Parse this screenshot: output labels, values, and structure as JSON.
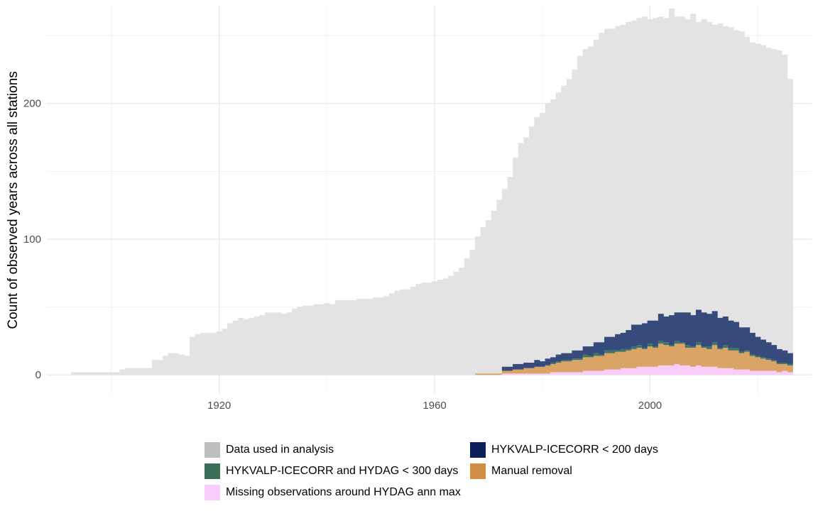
{
  "chart_data": {
    "type": "bar",
    "stacked": true,
    "title": "",
    "xlabel": "",
    "ylabel": "Count of observed years across all stations",
    "xlim": [
      1888,
      2030
    ],
    "ylim": [
      -14,
      272
    ],
    "x_ticks": [
      1920,
      1960,
      2000
    ],
    "y_ticks": [
      0,
      100,
      200
    ],
    "x_tick_labels": [
      "1920",
      "1960",
      "2000"
    ],
    "y_tick_labels": [
      "0",
      "100",
      "200"
    ],
    "grid": true,
    "legend_position": "bottom",
    "years_start": 1893,
    "years_end": 2023,
    "series": [
      {
        "name": "Data used in analysis",
        "color": "#e3e3e3",
        "legend_color": "#bebebe",
        "values": [
          2,
          2,
          2,
          2,
          2,
          2,
          2,
          2,
          2,
          4,
          5,
          5,
          5,
          5,
          5,
          11,
          11,
          14,
          16,
          16,
          15,
          14,
          28,
          30,
          31,
          31,
          31,
          32,
          34,
          38,
          40,
          42,
          41,
          42,
          43,
          44,
          46,
          46,
          46,
          45,
          46,
          49,
          50,
          51,
          51,
          52,
          52,
          53,
          52,
          55,
          55,
          55,
          55,
          56,
          56,
          56,
          57,
          57,
          58,
          60,
          62,
          63,
          63,
          65,
          67,
          68,
          68,
          69,
          70,
          71,
          73,
          76,
          79,
          86,
          92,
          102,
          109,
          114,
          121,
          129,
          137,
          146,
          160,
          171,
          175,
          183,
          190,
          193,
          200,
          203,
          208,
          213,
          218,
          225,
          235,
          240,
          242,
          247,
          252,
          255,
          255,
          257,
          258,
          260,
          261,
          263,
          264,
          262,
          263,
          264,
          263,
          270,
          264,
          264,
          262,
          266,
          260,
          262,
          260,
          258,
          259,
          257,
          256,
          254,
          253,
          249,
          245,
          244,
          243,
          241,
          240,
          239,
          236,
          218
        ]
      },
      {
        "name": "Missing observations around HYDAG ann max",
        "color": "#f9ccf9",
        "legend_color": "#f9ccf9",
        "values": [
          0,
          0,
          0,
          0,
          0,
          0,
          0,
          0,
          0,
          0,
          0,
          0,
          0,
          0,
          0,
          0,
          0,
          0,
          0,
          0,
          0,
          0,
          0,
          0,
          0,
          0,
          0,
          0,
          0,
          0,
          0,
          0,
          0,
          0,
          0,
          0,
          0,
          0,
          0,
          0,
          0,
          0,
          0,
          0,
          0,
          0,
          0,
          0,
          0,
          0,
          0,
          0,
          0,
          0,
          0,
          0,
          0,
          0,
          0,
          0,
          0,
          0,
          0,
          0,
          0,
          0,
          0,
          0,
          0,
          0,
          0,
          0,
          0,
          0,
          0,
          0,
          0,
          0,
          0,
          0,
          1,
          1,
          1,
          1,
          1,
          1,
          1,
          1,
          1,
          2,
          2,
          2,
          2,
          2,
          2,
          3,
          3,
          3,
          3,
          4,
          4,
          4,
          5,
          5,
          5,
          6,
          6,
          6,
          6,
          7,
          7,
          7,
          8,
          7,
          7,
          6,
          7,
          6,
          6,
          6,
          5,
          5,
          5,
          4,
          4,
          4,
          3,
          3,
          3,
          3,
          3,
          2,
          3,
          2,
          3,
          2,
          2,
          3,
          2
        ]
      },
      {
        "name": "Manual removal",
        "color": "#d9a465",
        "legend_color": "#d18d43",
        "values": [
          0,
          0,
          0,
          0,
          0,
          0,
          0,
          0,
          0,
          0,
          0,
          0,
          0,
          0,
          0,
          0,
          0,
          0,
          0,
          0,
          0,
          0,
          0,
          0,
          0,
          0,
          0,
          0,
          0,
          0,
          0,
          0,
          0,
          0,
          0,
          0,
          0,
          0,
          0,
          0,
          0,
          0,
          0,
          0,
          0,
          0,
          0,
          0,
          0,
          0,
          0,
          0,
          0,
          0,
          0,
          0,
          0,
          0,
          0,
          0,
          0,
          0,
          0,
          0,
          0,
          0,
          0,
          0,
          0,
          0,
          0,
          0,
          0,
          0,
          0,
          1,
          1,
          1,
          1,
          1,
          2,
          2,
          3,
          3,
          4,
          4,
          5,
          5,
          6,
          6,
          7,
          8,
          8,
          9,
          9,
          10,
          10,
          11,
          11,
          12,
          12,
          13,
          12,
          13,
          14,
          14,
          13,
          15,
          14,
          16,
          15,
          14,
          15,
          16,
          13,
          14,
          15,
          14,
          13,
          16,
          14,
          15,
          13,
          14,
          12,
          13,
          11,
          10,
          9,
          8,
          7,
          6,
          5,
          5,
          4,
          4,
          4,
          5,
          3
        ]
      },
      {
        "name": "HYKVALP-ICECORR and HYDAG < 300 days",
        "color": "#3f7564",
        "legend_color": "#3b6e56",
        "values": [
          0,
          0,
          0,
          0,
          0,
          0,
          0,
          0,
          0,
          0,
          0,
          0,
          0,
          0,
          0,
          0,
          0,
          0,
          0,
          0,
          0,
          0,
          0,
          0,
          0,
          0,
          0,
          0,
          0,
          0,
          0,
          0,
          0,
          0,
          0,
          0,
          0,
          0,
          0,
          0,
          0,
          0,
          0,
          0,
          0,
          0,
          0,
          0,
          0,
          0,
          0,
          0,
          0,
          0,
          0,
          0,
          0,
          0,
          0,
          0,
          0,
          0,
          0,
          0,
          0,
          0,
          0,
          0,
          0,
          0,
          0,
          0,
          0,
          0,
          0,
          0,
          0,
          0,
          0,
          0,
          0,
          0,
          0,
          0,
          0,
          0,
          0,
          0,
          0,
          1,
          1,
          1,
          1,
          1,
          1,
          2,
          1,
          2,
          1,
          2,
          2,
          1,
          2,
          1,
          2,
          2,
          1,
          2,
          1,
          2,
          2,
          1,
          2,
          1,
          2,
          1,
          2,
          1,
          2,
          2,
          1,
          2,
          2,
          2,
          1,
          1,
          1,
          1,
          1,
          1,
          1,
          1,
          1,
          1,
          1,
          1,
          1,
          1,
          1
        ]
      },
      {
        "name": "HYKVALP-ICECORR < 200 days",
        "color": "#364a7c",
        "legend_color": "#0c1f59",
        "values": [
          0,
          0,
          0,
          0,
          0,
          0,
          0,
          0,
          0,
          0,
          0,
          0,
          0,
          0,
          0,
          0,
          0,
          0,
          0,
          0,
          0,
          0,
          0,
          0,
          0,
          0,
          0,
          0,
          0,
          0,
          0,
          0,
          0,
          0,
          0,
          0,
          0,
          0,
          0,
          0,
          0,
          0,
          0,
          0,
          0,
          0,
          0,
          0,
          0,
          0,
          0,
          0,
          0,
          0,
          0,
          0,
          0,
          0,
          0,
          0,
          0,
          0,
          0,
          0,
          0,
          0,
          0,
          0,
          0,
          0,
          0,
          0,
          0,
          0,
          0,
          0,
          0,
          0,
          0,
          0,
          3,
          3,
          4,
          4,
          4,
          4,
          5,
          4,
          5,
          4,
          5,
          5,
          5,
          6,
          6,
          6,
          7,
          8,
          9,
          10,
          10,
          12,
          12,
          14,
          16,
          15,
          18,
          17,
          19,
          20,
          19,
          22,
          21,
          22,
          24,
          23,
          24,
          25,
          24,
          23,
          22,
          21,
          20,
          19,
          18,
          17,
          16,
          14,
          13,
          12,
          11,
          10,
          9,
          8,
          7,
          6,
          5,
          4,
          6
        ]
      }
    ]
  },
  "legend": {
    "items": [
      {
        "label": "Data used in analysis",
        "color": "#bebebe"
      },
      {
        "label": "HYKVALP-ICECORR < 200 days",
        "color": "#0c1f59"
      },
      {
        "label": "HYKVALP-ICECORR and HYDAG < 300 days",
        "color": "#3b6e56"
      },
      {
        "label": "Manual removal",
        "color": "#d18d43"
      },
      {
        "label": "Missing observations around HYDAG ann max",
        "color": "#f9ccf9"
      }
    ]
  }
}
